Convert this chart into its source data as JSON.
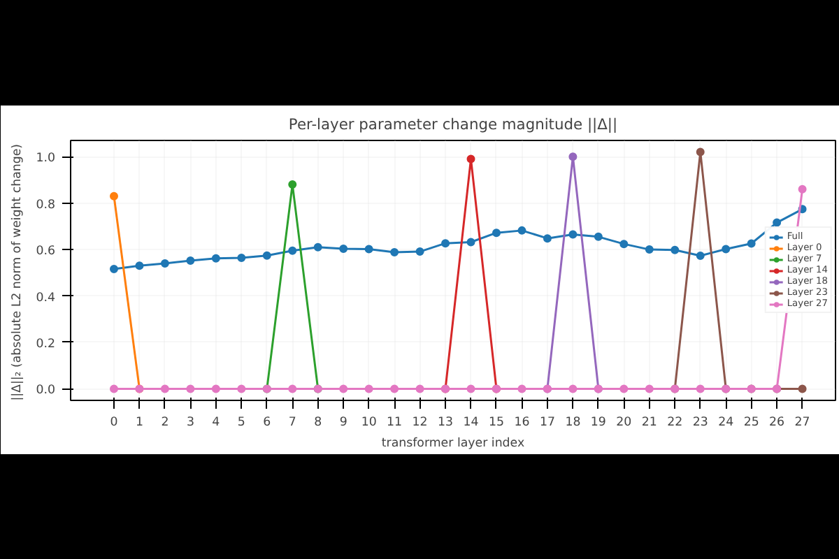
{
  "chart_data": {
    "type": "line",
    "title": "Per-layer parameter change magnitude ||Δ||",
    "xlabel": "transformer layer index",
    "ylabel": "||Δ||₂  (absolute L2 norm of weight change)",
    "x": [
      0,
      1,
      2,
      3,
      4,
      5,
      6,
      7,
      8,
      9,
      10,
      11,
      12,
      13,
      14,
      15,
      16,
      17,
      18,
      19,
      20,
      21,
      22,
      23,
      24,
      25,
      26,
      27
    ],
    "series": [
      {
        "name": "Full",
        "color": "#1f77b4",
        "values": [
          0.516,
          0.53,
          0.54,
          0.552,
          0.562,
          0.564,
          0.574,
          0.595,
          0.61,
          0.603,
          0.602,
          0.588,
          0.591,
          0.627,
          0.632,
          0.672,
          0.682,
          0.648,
          0.665,
          0.655,
          0.624,
          0.6,
          0.598,
          0.573,
          0.602,
          0.626,
          0.716,
          0.774
        ]
      },
      {
        "name": "Layer 0",
        "color": "#ff7f0e",
        "values": [
          0.83,
          0,
          null,
          null,
          null,
          null,
          null,
          null,
          null,
          null,
          null,
          null,
          null,
          null,
          null,
          null,
          null,
          null,
          null,
          null,
          null,
          null,
          null,
          null,
          null,
          null,
          null,
          null
        ]
      },
      {
        "name": "Layer 7",
        "color": "#2ca02c",
        "values": [
          null,
          null,
          null,
          null,
          null,
          null,
          0,
          0.88,
          0,
          null,
          null,
          null,
          null,
          null,
          null,
          null,
          null,
          null,
          null,
          null,
          null,
          null,
          null,
          null,
          null,
          null,
          null,
          null
        ]
      },
      {
        "name": "Layer 14",
        "color": "#d62728",
        "values": [
          null,
          null,
          null,
          null,
          null,
          null,
          null,
          null,
          null,
          null,
          null,
          null,
          null,
          0,
          0.99,
          0,
          null,
          null,
          null,
          null,
          null,
          null,
          null,
          null,
          null,
          null,
          null,
          null
        ]
      },
      {
        "name": "Layer 18",
        "color": "#9467bd",
        "values": [
          null,
          null,
          null,
          null,
          null,
          null,
          null,
          null,
          null,
          null,
          null,
          null,
          null,
          null,
          null,
          null,
          null,
          0,
          1.0,
          0,
          null,
          null,
          null,
          null,
          null,
          null,
          null,
          null
        ]
      },
      {
        "name": "Layer 23",
        "color": "#8c564b",
        "values": [
          null,
          null,
          null,
          null,
          null,
          null,
          null,
          null,
          null,
          null,
          null,
          null,
          null,
          null,
          null,
          null,
          null,
          null,
          null,
          null,
          null,
          null,
          0,
          1.02,
          0,
          0,
          0,
          0
        ]
      },
      {
        "name": "Layer 27",
        "color": "#e377c2",
        "values": [
          0,
          0,
          0,
          0,
          0,
          0,
          0,
          0,
          0,
          0,
          0,
          0,
          0,
          0,
          0,
          0,
          0,
          0,
          0,
          0,
          0,
          0,
          0,
          0,
          0,
          0,
          0,
          0.86
        ]
      }
    ],
    "xlim": [
      -1.7,
      28.3
    ],
    "xticks": [
      0,
      1,
      2,
      3,
      4,
      5,
      6,
      7,
      8,
      9,
      10,
      11,
      12,
      13,
      14,
      15,
      16,
      17,
      18,
      19,
      20,
      21,
      22,
      23,
      24,
      25,
      26,
      27
    ],
    "ylim": [
      -0.05,
      1.07
    ],
    "yticks": [
      {
        "value": 0,
        "label": "0.0"
      },
      {
        "value": 0.2,
        "label": "0.2"
      },
      {
        "value": 0.4,
        "label": "0.4"
      },
      {
        "value": 0.6,
        "label": "0.6"
      },
      {
        "value": 0.8,
        "label": "0.8"
      },
      {
        "value": 1.0,
        "label": "1.0"
      }
    ],
    "grid": true,
    "legend": "right",
    "marker": "circle",
    "line_style": "solid"
  }
}
